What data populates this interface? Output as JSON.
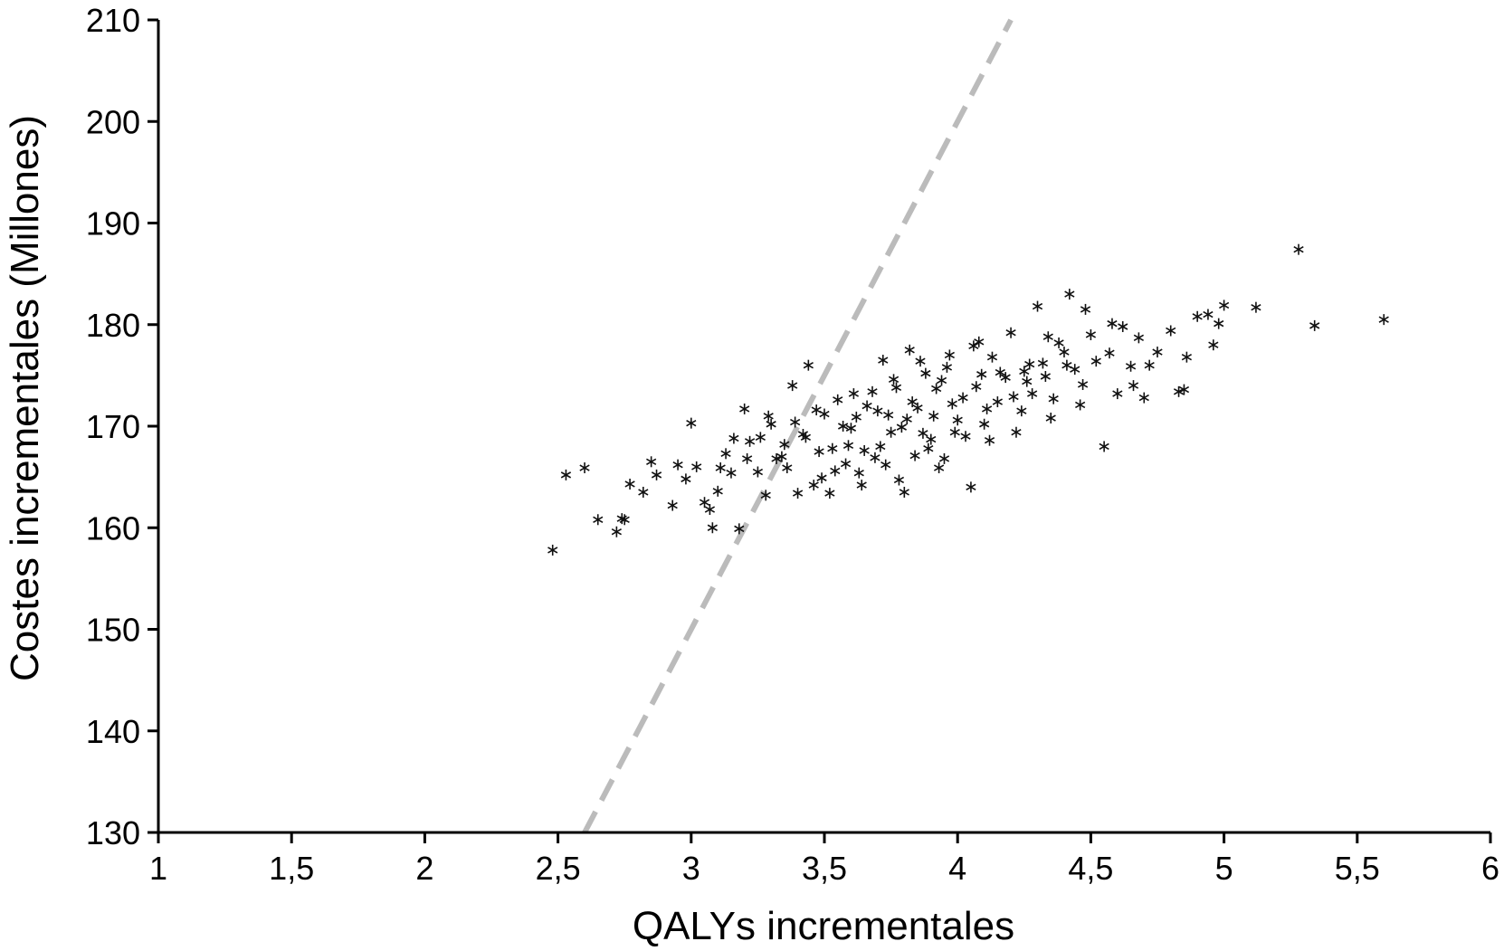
{
  "chart_data": {
    "type": "scatter",
    "title": "",
    "xlabel": "QALYs incrementales",
    "ylabel": "Costes incrementales (Millones)",
    "xlim": [
      1,
      6
    ],
    "ylim": [
      130,
      210
    ],
    "x_ticks": [
      1,
      1.5,
      2,
      2.5,
      3,
      3.5,
      4,
      4.5,
      5,
      5.5,
      6
    ],
    "x_tick_labels": [
      "1",
      "1,5",
      "2",
      "2,5",
      "3",
      "3,5",
      "4",
      "4,5",
      "5",
      "5,5",
      "6"
    ],
    "y_ticks": [
      130,
      140,
      150,
      160,
      170,
      180,
      190,
      200,
      210
    ],
    "y_tick_labels": [
      "130",
      "140",
      "150",
      "160",
      "170",
      "180",
      "190",
      "200",
      "210"
    ],
    "grid": false,
    "legend": "none",
    "marker": "asterisk",
    "marker_color": "#111111",
    "threshold_line": {
      "style": "dashed",
      "color": "#bbbbbb",
      "points": [
        [
          2.6,
          130
        ],
        [
          4.2,
          210
        ]
      ]
    },
    "series": [
      {
        "points": [
          [
            2.48,
            157.8
          ],
          [
            2.53,
            165.2
          ],
          [
            2.6,
            165.9
          ],
          [
            2.65,
            160.8
          ],
          [
            2.72,
            159.6
          ],
          [
            2.74,
            160.9
          ],
          [
            2.75,
            160.8
          ],
          [
            2.77,
            164.3
          ],
          [
            2.82,
            163.5
          ],
          [
            2.85,
            166.5
          ],
          [
            2.87,
            165.2
          ],
          [
            2.93,
            162.2
          ],
          [
            2.95,
            166.2
          ],
          [
            2.98,
            164.8
          ],
          [
            3.0,
            170.3
          ],
          [
            3.02,
            166.0
          ],
          [
            3.05,
            162.5
          ],
          [
            3.07,
            161.8
          ],
          [
            3.08,
            160.0
          ],
          [
            3.1,
            163.6
          ],
          [
            3.13,
            167.3
          ],
          [
            3.15,
            165.4
          ],
          [
            3.18,
            159.9
          ],
          [
            3.2,
            171.7
          ],
          [
            3.22,
            168.5
          ],
          [
            3.25,
            165.5
          ],
          [
            3.28,
            163.2
          ],
          [
            3.3,
            170.2
          ],
          [
            3.32,
            166.8
          ],
          [
            3.35,
            168.2
          ],
          [
            3.38,
            174.0
          ],
          [
            3.4,
            163.4
          ],
          [
            3.42,
            169.2
          ],
          [
            3.44,
            176.0
          ],
          [
            3.46,
            164.2
          ],
          [
            3.48,
            167.5
          ],
          [
            3.5,
            171.2
          ],
          [
            3.52,
            163.4
          ],
          [
            3.55,
            172.6
          ],
          [
            3.58,
            166.3
          ],
          [
            3.6,
            169.8
          ],
          [
            3.62,
            170.9
          ],
          [
            3.65,
            167.6
          ],
          [
            3.68,
            173.4
          ],
          [
            3.7,
            171.5
          ],
          [
            3.72,
            176.5
          ],
          [
            3.75,
            169.4
          ],
          [
            3.77,
            173.8
          ],
          [
            3.78,
            164.7
          ],
          [
            3.8,
            163.5
          ],
          [
            3.82,
            177.5
          ],
          [
            3.85,
            171.8
          ],
          [
            3.88,
            175.2
          ],
          [
            3.9,
            168.7
          ],
          [
            3.92,
            173.7
          ],
          [
            3.95,
            166.8
          ],
          [
            3.97,
            177.0
          ],
          [
            4.0,
            170.6
          ],
          [
            4.02,
            172.8
          ],
          [
            4.05,
            164.0
          ],
          [
            4.08,
            178.3
          ],
          [
            4.1,
            170.2
          ],
          [
            4.13,
            176.8
          ],
          [
            4.15,
            172.4
          ],
          [
            4.18,
            174.8
          ],
          [
            4.2,
            179.2
          ],
          [
            4.22,
            169.4
          ],
          [
            4.25,
            175.4
          ],
          [
            4.28,
            173.2
          ],
          [
            4.3,
            181.8
          ],
          [
            4.32,
            176.2
          ],
          [
            4.35,
            170.8
          ],
          [
            4.38,
            178.2
          ],
          [
            4.42,
            183.0
          ],
          [
            4.44,
            175.6
          ],
          [
            4.46,
            172.1
          ],
          [
            4.48,
            181.5
          ],
          [
            4.5,
            179.0
          ],
          [
            4.52,
            176.4
          ],
          [
            4.55,
            168.0
          ],
          [
            4.58,
            180.1
          ],
          [
            4.6,
            173.2
          ],
          [
            4.62,
            179.8
          ],
          [
            4.65,
            175.9
          ],
          [
            4.68,
            178.7
          ],
          [
            4.7,
            172.8
          ],
          [
            4.75,
            177.3
          ],
          [
            4.8,
            179.4
          ],
          [
            4.83,
            173.4
          ],
          [
            4.86,
            176.8
          ],
          [
            4.9,
            180.8
          ],
          [
            4.94,
            181.0
          ],
          [
            4.96,
            178.0
          ],
          [
            5.0,
            181.9
          ],
          [
            5.12,
            181.7
          ],
          [
            5.28,
            187.4
          ],
          [
            5.34,
            179.9
          ],
          [
            5.6,
            180.5
          ],
          [
            3.26,
            168.9
          ],
          [
            3.34,
            167.0
          ],
          [
            3.43,
            168.9
          ],
          [
            3.47,
            171.6
          ],
          [
            3.53,
            167.8
          ],
          [
            3.57,
            170.0
          ],
          [
            3.63,
            165.4
          ],
          [
            3.66,
            172.0
          ],
          [
            3.71,
            168.0
          ],
          [
            3.74,
            171.1
          ],
          [
            3.79,
            169.9
          ],
          [
            3.83,
            172.4
          ],
          [
            3.87,
            169.3
          ],
          [
            3.91,
            171.0
          ],
          [
            3.94,
            174.5
          ],
          [
            3.98,
            172.2
          ],
          [
            4.03,
            169.0
          ],
          [
            4.07,
            173.9
          ],
          [
            4.11,
            171.7
          ],
          [
            4.16,
            175.3
          ],
          [
            4.21,
            172.9
          ],
          [
            4.27,
            176.1
          ],
          [
            4.33,
            174.9
          ],
          [
            4.4,
            177.3
          ],
          [
            3.36,
            165.9
          ],
          [
            3.49,
            164.9
          ],
          [
            3.59,
            168.1
          ],
          [
            3.69,
            166.9
          ],
          [
            3.81,
            170.7
          ],
          [
            3.89,
            167.8
          ],
          [
            3.99,
            169.4
          ],
          [
            4.09,
            175.1
          ],
          [
            4.24,
            171.5
          ],
          [
            4.36,
            172.7
          ],
          [
            3.61,
            173.2
          ],
          [
            3.76,
            174.6
          ],
          [
            3.86,
            176.4
          ],
          [
            3.96,
            175.8
          ],
          [
            4.06,
            177.9
          ],
          [
            3.54,
            165.6
          ],
          [
            3.64,
            164.2
          ],
          [
            3.73,
            166.2
          ],
          [
            3.84,
            167.1
          ],
          [
            3.93,
            165.9
          ],
          [
            3.16,
            168.8
          ],
          [
            3.11,
            165.9
          ],
          [
            3.21,
            166.8
          ],
          [
            3.29,
            171.0
          ],
          [
            3.39,
            170.4
          ],
          [
            4.12,
            168.6
          ],
          [
            4.26,
            174.4
          ],
          [
            4.34,
            178.8
          ],
          [
            4.41,
            176.0
          ],
          [
            4.47,
            174.1
          ],
          [
            4.57,
            177.2
          ],
          [
            4.66,
            174.0
          ],
          [
            4.72,
            176.0
          ],
          [
            4.85,
            173.6
          ],
          [
            4.98,
            180.1
          ]
        ]
      }
    ]
  }
}
